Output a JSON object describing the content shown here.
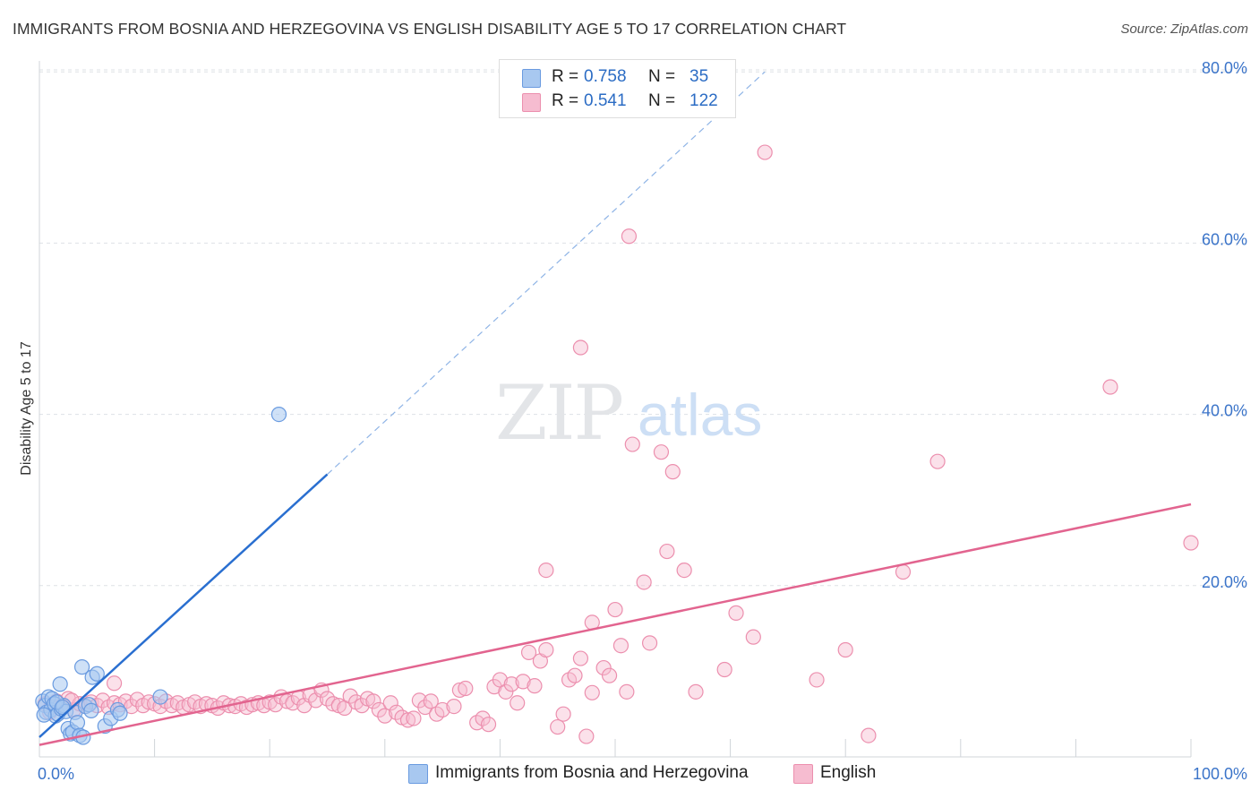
{
  "header": {
    "title": "IMMIGRANTS FROM BOSNIA AND HERZEGOVINA VS ENGLISH DISABILITY AGE 5 TO 17 CORRELATION CHART",
    "source": "Source: ZipAtlas.com"
  },
  "legend": {
    "r_label": "R =",
    "n_label": "N =",
    "series1": {
      "r": "0.758",
      "n": "35"
    },
    "series2": {
      "r": "0.541",
      "n": "122"
    }
  },
  "watermark": {
    "zip": "ZIP",
    "atlas": "atlas"
  },
  "colors": {
    "blue_fill": "#a8c8f0",
    "blue_stroke": "#6a9be0",
    "blue_line": "#2a6fd0",
    "pink_fill": "#f6bcd0",
    "pink_stroke": "#ec8fae",
    "pink_line": "#e2648f",
    "axis_label": "#3b74c9",
    "grid": "#dde1e6"
  },
  "chart_data": {
    "type": "scatter",
    "title": "IMMIGRANTS FROM BOSNIA AND HERZEGOVINA VS ENGLISH DISABILITY AGE 5 TO 17 CORRELATION CHART",
    "xlabel": "",
    "ylabel": "Disability Age 5 to 17",
    "xlim": [
      0,
      100
    ],
    "ylim": [
      0,
      83
    ],
    "x_tick_labels": [
      "0.0%",
      "100.0%"
    ],
    "y_ticks": [
      20,
      40,
      60,
      80
    ],
    "y_tick_labels": [
      "20.0%",
      "40.0%",
      "60.0%",
      "80.0%"
    ],
    "grid": true,
    "legend_position": "top-center",
    "series": [
      {
        "name": "Immigrants from Bosnia and Herzegovina",
        "color": "#a8c8f0",
        "r": 0.758,
        "n": 35,
        "trend": {
          "x": [
            0.0,
            25.0
          ],
          "y": [
            2.3,
            33.0
          ],
          "dashed_to": [
            63.0,
            80.0
          ]
        },
        "points": [
          [
            0.3,
            6.5
          ],
          [
            0.5,
            6.0
          ],
          [
            0.6,
            5.2
          ],
          [
            0.8,
            7.0
          ],
          [
            1.0,
            5.5
          ],
          [
            1.1,
            6.8
          ],
          [
            1.3,
            6.2
          ],
          [
            1.4,
            4.8
          ],
          [
            1.6,
            5.0
          ],
          [
            1.8,
            8.5
          ],
          [
            1.9,
            5.6
          ],
          [
            2.1,
            6.0
          ],
          [
            2.3,
            5.3
          ],
          [
            2.5,
            3.3
          ],
          [
            2.7,
            2.7
          ],
          [
            2.9,
            2.9
          ],
          [
            3.1,
            5.2
          ],
          [
            3.3,
            4.0
          ],
          [
            3.5,
            2.5
          ],
          [
            3.7,
            10.5
          ],
          [
            3.8,
            2.3
          ],
          [
            4.0,
            5.9
          ],
          [
            4.3,
            6.1
          ],
          [
            4.6,
            9.3
          ],
          [
            5.0,
            9.7
          ],
          [
            5.7,
            3.6
          ],
          [
            6.2,
            4.5
          ],
          [
            6.8,
            5.5
          ],
          [
            7.0,
            5.1
          ],
          [
            0.4,
            4.9
          ],
          [
            1.5,
            6.4
          ],
          [
            2.0,
            5.8
          ],
          [
            10.5,
            7.0
          ],
          [
            20.8,
            40.0
          ],
          [
            4.5,
            5.4
          ]
        ]
      },
      {
        "name": "English",
        "color": "#f6bcd0",
        "r": 0.541,
        "n": 122,
        "trend": {
          "x": [
            0.0,
            100.0
          ],
          "y": [
            1.4,
            29.5
          ]
        },
        "points": [
          [
            0.5,
            6.2
          ],
          [
            1.0,
            5.8
          ],
          [
            1.5,
            6.5
          ],
          [
            2.0,
            6.0
          ],
          [
            2.5,
            6.8
          ],
          [
            3.0,
            5.5
          ],
          [
            3.5,
            6.2
          ],
          [
            4.0,
            5.9
          ],
          [
            4.5,
            6.4
          ],
          [
            5.0,
            6.0
          ],
          [
            5.5,
            6.6
          ],
          [
            6.0,
            5.8
          ],
          [
            6.5,
            6.3
          ],
          [
            7.0,
            6.1
          ],
          [
            7.5,
            6.5
          ],
          [
            8.0,
            5.9
          ],
          [
            8.5,
            6.7
          ],
          [
            9.0,
            6.0
          ],
          [
            9.5,
            6.4
          ],
          [
            10.0,
            6.2
          ],
          [
            10.5,
            5.9
          ],
          [
            11.0,
            6.5
          ],
          [
            11.5,
            6.0
          ],
          [
            12.0,
            6.3
          ],
          [
            12.5,
            5.8
          ],
          [
            13.0,
            6.1
          ],
          [
            13.5,
            6.4
          ],
          [
            14.0,
            5.9
          ],
          [
            14.5,
            6.2
          ],
          [
            15.0,
            6.0
          ],
          [
            15.5,
            5.7
          ],
          [
            16.0,
            6.3
          ],
          [
            16.5,
            6.0
          ],
          [
            17.0,
            5.9
          ],
          [
            17.5,
            6.2
          ],
          [
            18.0,
            5.8
          ],
          [
            18.5,
            6.1
          ],
          [
            19.0,
            6.3
          ],
          [
            19.5,
            6.0
          ],
          [
            20.0,
            6.4
          ],
          [
            20.5,
            6.1
          ],
          [
            21.0,
            7.0
          ],
          [
            21.5,
            6.5
          ],
          [
            22.0,
            6.3
          ],
          [
            22.5,
            6.9
          ],
          [
            23.0,
            6.0
          ],
          [
            23.5,
            7.2
          ],
          [
            24.0,
            6.6
          ],
          [
            24.5,
            7.8
          ],
          [
            25.0,
            6.8
          ],
          [
            25.5,
            6.2
          ],
          [
            26.0,
            6.0
          ],
          [
            26.5,
            5.7
          ],
          [
            27.0,
            7.1
          ],
          [
            27.5,
            6.4
          ],
          [
            28.0,
            6.0
          ],
          [
            28.5,
            6.8
          ],
          [
            29.0,
            6.5
          ],
          [
            29.5,
            5.5
          ],
          [
            30.0,
            4.8
          ],
          [
            30.5,
            6.3
          ],
          [
            31.0,
            5.2
          ],
          [
            31.5,
            4.6
          ],
          [
            32.0,
            4.3
          ],
          [
            32.5,
            4.5
          ],
          [
            33.0,
            6.6
          ],
          [
            33.5,
            5.8
          ],
          [
            34.0,
            6.5
          ],
          [
            34.5,
            5.0
          ],
          [
            35.0,
            5.5
          ],
          [
            36.0,
            5.9
          ],
          [
            36.5,
            7.8
          ],
          [
            37.0,
            8.0
          ],
          [
            38.0,
            4.0
          ],
          [
            38.5,
            4.5
          ],
          [
            39.0,
            3.8
          ],
          [
            39.5,
            8.2
          ],
          [
            40.0,
            9.0
          ],
          [
            40.5,
            7.6
          ],
          [
            41.0,
            8.5
          ],
          [
            41.5,
            6.3
          ],
          [
            42.0,
            8.8
          ],
          [
            42.5,
            12.2
          ],
          [
            43.0,
            8.3
          ],
          [
            43.5,
            11.2
          ],
          [
            44.0,
            12.5
          ],
          [
            45.0,
            3.5
          ],
          [
            45.5,
            5.0
          ],
          [
            46.0,
            9.0
          ],
          [
            46.5,
            9.5
          ],
          [
            47.0,
            11.5
          ],
          [
            47.5,
            2.4
          ],
          [
            48.0,
            15.7
          ],
          [
            49.0,
            10.4
          ],
          [
            49.5,
            9.5
          ],
          [
            50.0,
            17.2
          ],
          [
            50.5,
            13.0
          ],
          [
            51.0,
            7.6
          ],
          [
            52.5,
            20.4
          ],
          [
            53.0,
            13.3
          ],
          [
            6.5,
            8.6
          ],
          [
            2.8,
            6.6
          ],
          [
            1.2,
            5.8
          ],
          [
            0.9,
            5.2
          ],
          [
            44.0,
            21.8
          ],
          [
            47.0,
            47.8
          ],
          [
            48.0,
            7.5
          ],
          [
            51.2,
            60.8
          ],
          [
            51.5,
            36.5
          ],
          [
            54.0,
            35.6
          ],
          [
            54.5,
            24.0
          ],
          [
            55.0,
            33.3
          ],
          [
            56.0,
            21.8
          ],
          [
            57.0,
            7.6
          ],
          [
            59.5,
            10.2
          ],
          [
            60.5,
            16.8
          ],
          [
            62.0,
            14.0
          ],
          [
            63.0,
            70.6
          ],
          [
            67.5,
            9.0
          ],
          [
            70.0,
            12.5
          ],
          [
            72.0,
            2.5
          ],
          [
            75.0,
            21.6
          ],
          [
            78.0,
            34.5
          ],
          [
            93.0,
            43.2
          ],
          [
            100.0,
            25.0
          ]
        ]
      }
    ]
  },
  "bottom_legend": {
    "series1": "Immigrants from Bosnia and Herzegovina",
    "series2": "English"
  }
}
